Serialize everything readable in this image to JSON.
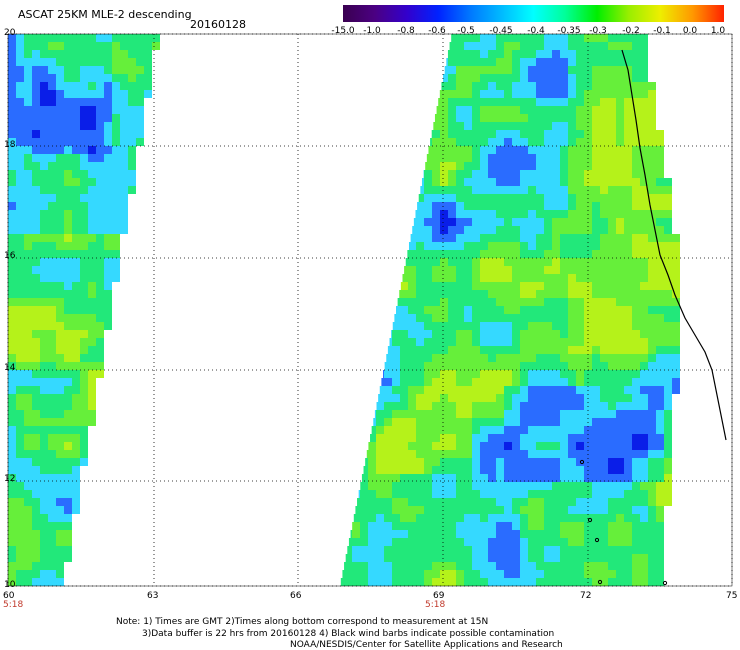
{
  "header": {
    "title": "ASCAT 25KM MLE-2 descending",
    "date": "20160128"
  },
  "colorbar": {
    "labels": [
      "-15.0",
      "-1.0",
      "-0.8",
      "-0.6",
      "-0.5",
      "-0.45",
      "-0.4",
      "-0.35",
      "-0.3",
      "-0.2",
      "-0.1",
      "0.0",
      "1.0"
    ],
    "colors": [
      "#3a0050",
      "#4b0082",
      "#3300cc",
      "#0022ff",
      "#0077ff",
      "#00bbff",
      "#00ffff",
      "#00ff99",
      "#00ee00",
      "#99ee00",
      "#eeee00",
      "#ff9900",
      "#ff2200"
    ]
  },
  "axes": {
    "lat_labels": [
      "20",
      "18",
      "16",
      "14",
      "12",
      "10"
    ],
    "lon_labels": [
      "60",
      "63",
      "66",
      "69",
      "72",
      "75"
    ],
    "time_labels": [
      "5:18",
      "5:18"
    ]
  },
  "notes": {
    "line1": "Note: 1) Times are GMT 2)Times along bottom correspond to measurement at 15N",
    "line2": "3)Data buffer is 22 hrs from 20160128 4) Black wind barbs indicate possible contamination",
    "line3": "NOAA/NESDIS/Center for Satellite Applications and Research"
  },
  "palette": {
    "deep_blue": "#0a1ee8",
    "blue": "#2a6cff",
    "cyan": "#35d9ff",
    "green": "#22e87a",
    "lime": "#66ef3a",
    "yellowgreen": "#b5f21a",
    "grid": "#000000"
  }
}
